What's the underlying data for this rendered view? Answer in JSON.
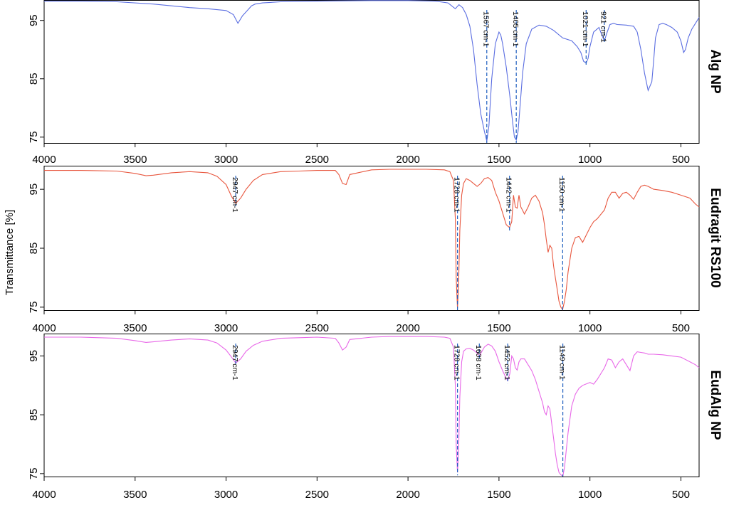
{
  "chart_data": {
    "type": "line",
    "ylabel": "Transmittance [%]",
    "xlim": [
      4000,
      400
    ],
    "x_ticks": [
      4000,
      3500,
      3000,
      2500,
      2000,
      1500,
      1000,
      500
    ],
    "ylim": [
      74,
      100
    ],
    "y_ticks": [
      75,
      85,
      95
    ],
    "colors": {
      "annotation": "#1f5fbf"
    },
    "panels": [
      {
        "name": "Alg NP",
        "color": "#5b6ee1",
        "ylim": [
          74,
          98.5
        ],
        "series": {
          "x": [
            4000,
            3800,
            3600,
            3400,
            3200,
            3100,
            3000,
            2960,
            2935,
            2910,
            2880,
            2860,
            2840,
            2800,
            2700,
            2500,
            2200,
            2000,
            1850,
            1780,
            1760,
            1740,
            1720,
            1700,
            1680,
            1660,
            1640,
            1620,
            1600,
            1580,
            1567,
            1555,
            1540,
            1520,
            1500,
            1490,
            1480,
            1460,
            1440,
            1425,
            1415,
            1405,
            1395,
            1385,
            1370,
            1350,
            1320,
            1280,
            1240,
            1200,
            1150,
            1100,
            1070,
            1050,
            1035,
            1021,
            1010,
            1000,
            980,
            950,
            935,
            921,
            905,
            890,
            870,
            850,
            800,
            760,
            740,
            720,
            700,
            680,
            660,
            650,
            640,
            620,
            600,
            580,
            550,
            520,
            500,
            485,
            475,
            460,
            440,
            420,
            400
          ],
          "y": [
            98.3,
            98.3,
            98.2,
            97.8,
            97.2,
            97.0,
            96.7,
            96.0,
            94.5,
            95.8,
            96.8,
            97.5,
            97.8,
            98.0,
            98.2,
            98.3,
            98.4,
            98.4,
            98.3,
            98.0,
            97.5,
            97.0,
            97.7,
            97.2,
            96.0,
            94.0,
            90.0,
            84.0,
            79.0,
            76.0,
            74.3,
            77.0,
            85.0,
            91.0,
            93.0,
            92.5,
            91.0,
            87.0,
            82.0,
            77.5,
            75.0,
            74.5,
            76.0,
            80.0,
            86.0,
            91.0,
            93.5,
            94.2,
            94.0,
            93.3,
            92.0,
            91.5,
            90.5,
            89.5,
            88.0,
            87.7,
            88.5,
            90.5,
            93.0,
            93.8,
            92.5,
            91.5,
            93.0,
            94.3,
            94.5,
            94.3,
            94.2,
            94.0,
            93.0,
            90.0,
            86.0,
            83.0,
            84.5,
            88.0,
            92.0,
            94.3,
            94.5,
            94.3,
            93.8,
            93.0,
            91.5,
            89.5,
            90.0,
            92.0,
            93.5,
            94.5,
            95.5
          ]
        },
        "annotations": [
          {
            "x": 1567,
            "label": "1567 cm-1"
          },
          {
            "x": 1405,
            "label": "1405 cm-1"
          },
          {
            "x": 1021,
            "label": "1021 cm-1"
          },
          {
            "x": 921,
            "label": "921 cm-1"
          }
        ]
      },
      {
        "name": "Eudragit RS100",
        "color": "#e8573f",
        "ylim": [
          74.5,
          99
        ],
        "series": {
          "x": [
            4000,
            3800,
            3600,
            3500,
            3440,
            3400,
            3300,
            3200,
            3100,
            3050,
            3000,
            2970,
            2947,
            2920,
            2890,
            2850,
            2800,
            2700,
            2600,
            2500,
            2400,
            2380,
            2360,
            2340,
            2320,
            2200,
            2100,
            2000,
            1900,
            1800,
            1770,
            1750,
            1740,
            1735,
            1728,
            1722,
            1715,
            1705,
            1695,
            1680,
            1660,
            1640,
            1620,
            1600,
            1580,
            1560,
            1540,
            1520,
            1500,
            1480,
            1460,
            1442,
            1430,
            1420,
            1410,
            1400,
            1390,
            1380,
            1360,
            1340,
            1320,
            1300,
            1280,
            1260,
            1250,
            1240,
            1230,
            1220,
            1210,
            1200,
            1190,
            1180,
            1170,
            1160,
            1150,
            1140,
            1130,
            1120,
            1100,
            1080,
            1060,
            1040,
            1000,
            980,
            960,
            920,
            900,
            880,
            860,
            840,
            820,
            800,
            780,
            760,
            740,
            720,
            700,
            680,
            650,
            600,
            550,
            500,
            450,
            420,
            400
          ],
          "y": [
            98.2,
            98.2,
            98.1,
            97.7,
            97.3,
            97.4,
            97.8,
            98.0,
            97.8,
            97.2,
            95.8,
            93.8,
            92.6,
            93.5,
            95.0,
            96.5,
            97.5,
            98.0,
            98.1,
            98.2,
            98.2,
            97.5,
            96.0,
            95.8,
            97.5,
            98.3,
            98.4,
            98.4,
            98.4,
            98.3,
            98.0,
            96.5,
            90.0,
            80.0,
            74.8,
            79.0,
            88.0,
            94.0,
            96.0,
            96.8,
            96.5,
            96.0,
            95.5,
            96.0,
            96.8,
            97.0,
            96.5,
            94.5,
            93.0,
            91.0,
            89.0,
            88.5,
            89.5,
            94.0,
            92.0,
            91.8,
            94.0,
            92.0,
            90.8,
            92.0,
            93.5,
            94.0,
            93.0,
            91.0,
            89.0,
            86.5,
            84.3,
            85.5,
            85.0,
            82.0,
            80.0,
            78.0,
            76.0,
            75.0,
            74.6,
            76.0,
            78.0,
            81.0,
            85.0,
            86.8,
            87.0,
            86.0,
            88.5,
            89.5,
            90.0,
            91.5,
            93.5,
            94.5,
            94.5,
            93.5,
            94.3,
            94.5,
            94.0,
            93.3,
            94.5,
            95.5,
            95.7,
            95.5,
            95.0,
            94.8,
            94.5,
            94.0,
            93.5,
            92.5,
            92.0
          ]
        },
        "annotations": [
          {
            "x": 2947,
            "label": "2947 cm-1"
          },
          {
            "x": 1728,
            "label": "1728 cm-1"
          },
          {
            "x": 1442,
            "label": "1442 cm-1"
          },
          {
            "x": 1150,
            "label": "1150 cm-1"
          }
        ]
      },
      {
        "name": "EudAlg NP",
        "color": "#e868e8",
        "ylim": [
          74.5,
          98.8
        ],
        "series": {
          "x": [
            4000,
            3800,
            3600,
            3500,
            3440,
            3400,
            3300,
            3200,
            3100,
            3050,
            3000,
            2970,
            2947,
            2920,
            2890,
            2850,
            2800,
            2700,
            2600,
            2500,
            2400,
            2380,
            2360,
            2340,
            2320,
            2200,
            2100,
            2000,
            1900,
            1800,
            1770,
            1750,
            1740,
            1735,
            1728,
            1722,
            1715,
            1705,
            1695,
            1680,
            1660,
            1640,
            1620,
            1608,
            1595,
            1580,
            1560,
            1540,
            1520,
            1500,
            1480,
            1465,
            1452,
            1440,
            1430,
            1420,
            1410,
            1400,
            1390,
            1380,
            1360,
            1340,
            1320,
            1300,
            1280,
            1260,
            1250,
            1240,
            1230,
            1220,
            1210,
            1200,
            1190,
            1180,
            1170,
            1160,
            1149,
            1140,
            1130,
            1120,
            1100,
            1080,
            1060,
            1040,
            1000,
            980,
            960,
            920,
            900,
            880,
            860,
            840,
            820,
            800,
            780,
            760,
            740,
            720,
            700,
            680,
            650,
            600,
            550,
            500,
            450,
            420,
            400
          ],
          "y": [
            98.2,
            98.2,
            98.0,
            97.6,
            97.3,
            97.4,
            97.7,
            97.9,
            97.7,
            97.2,
            96.0,
            94.8,
            93.8,
            94.5,
            95.8,
            96.8,
            97.5,
            98.0,
            98.1,
            98.2,
            98.0,
            97.2,
            96.0,
            96.5,
            97.8,
            98.2,
            98.3,
            98.3,
            98.3,
            98.2,
            98.0,
            96.5,
            90.0,
            80.0,
            75.2,
            79.0,
            88.0,
            94.0,
            95.8,
            96.2,
            96.3,
            96.0,
            95.5,
            95.0,
            95.7,
            96.5,
            97.0,
            96.7,
            95.8,
            94.0,
            92.5,
            91.5,
            90.8,
            92.0,
            95.0,
            94.5,
            93.0,
            92.6,
            94.0,
            94.5,
            94.5,
            93.5,
            92.5,
            91.0,
            89.0,
            87.0,
            85.5,
            85.0,
            86.5,
            86.0,
            83.5,
            81.0,
            78.5,
            76.5,
            75.2,
            74.8,
            74.6,
            76.0,
            79.0,
            82.0,
            86.5,
            88.5,
            89.5,
            90.0,
            90.5,
            90.2,
            91.0,
            93.0,
            94.5,
            94.3,
            93.0,
            94.0,
            94.5,
            93.5,
            92.5,
            95.0,
            95.7,
            95.6,
            95.5,
            95.3,
            95.3,
            95.2,
            95.0,
            94.8,
            94.0,
            93.5,
            93.0
          ]
        },
        "annotations": [
          {
            "x": 2947,
            "label": "2947 cm-1"
          },
          {
            "x": 1728,
            "label": "1728 cm-1"
          },
          {
            "x": 1608,
            "label": "1608 cm-1"
          },
          {
            "x": 1452,
            "label": "1452 cm-1"
          },
          {
            "x": 1149,
            "label": "1149 cm-1"
          }
        ]
      }
    ]
  }
}
